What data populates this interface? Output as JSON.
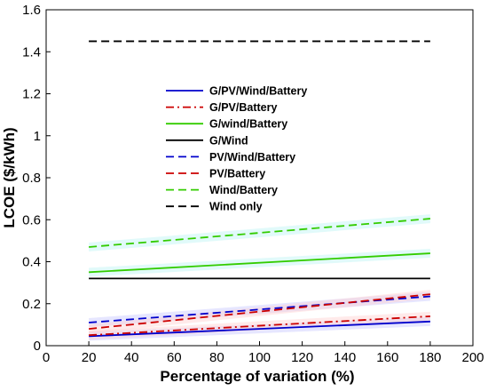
{
  "chart_data": {
    "type": "line",
    "title": "",
    "xlabel": "Percentage of variation (%)",
    "ylabel": "LCOE ($/kWh)",
    "xlim": [
      0,
      200
    ],
    "ylim": [
      0,
      1.6
    ],
    "x_ticks": [
      "0",
      "20",
      "40",
      "60",
      "80",
      "100",
      "120",
      "140",
      "160",
      "180",
      "200"
    ],
    "y_ticks": [
      "0",
      "0.2",
      "0.4",
      "0.6",
      "0.8",
      "1",
      "1.2",
      "1.4",
      "1.6"
    ],
    "grid": false,
    "legend_position": "upper-center",
    "x": [
      20,
      180
    ],
    "series": [
      {
        "name": "G/PV/Wind/Battery",
        "values": [
          0.045,
          0.115
        ],
        "color": "#0000cc",
        "dash": "solid"
      },
      {
        "name": "G/PV/Battery",
        "values": [
          0.05,
          0.14
        ],
        "color": "#cc0000",
        "dash": "dashdot"
      },
      {
        "name": "G/wind/Battery",
        "values": [
          0.35,
          0.44
        ],
        "color": "#33cc00",
        "dash": "solid"
      },
      {
        "name": "G/Wind",
        "values": [
          0.32,
          0.32
        ],
        "color": "#000000",
        "dash": "solid"
      },
      {
        "name": "PV/Wind/Battery",
        "values": [
          0.11,
          0.235
        ],
        "color": "#0000cc",
        "dash": "dashed"
      },
      {
        "name": "PV/Battery",
        "values": [
          0.08,
          0.245
        ],
        "color": "#cc0000",
        "dash": "dashed"
      },
      {
        "name": "Wind/Battery",
        "values": [
          0.47,
          0.605
        ],
        "color": "#33cc00",
        "dash": "dashed"
      },
      {
        "name": "Wind only",
        "values": [
          1.45,
          1.45
        ],
        "color": "#000000",
        "dash": "dashed"
      }
    ]
  }
}
